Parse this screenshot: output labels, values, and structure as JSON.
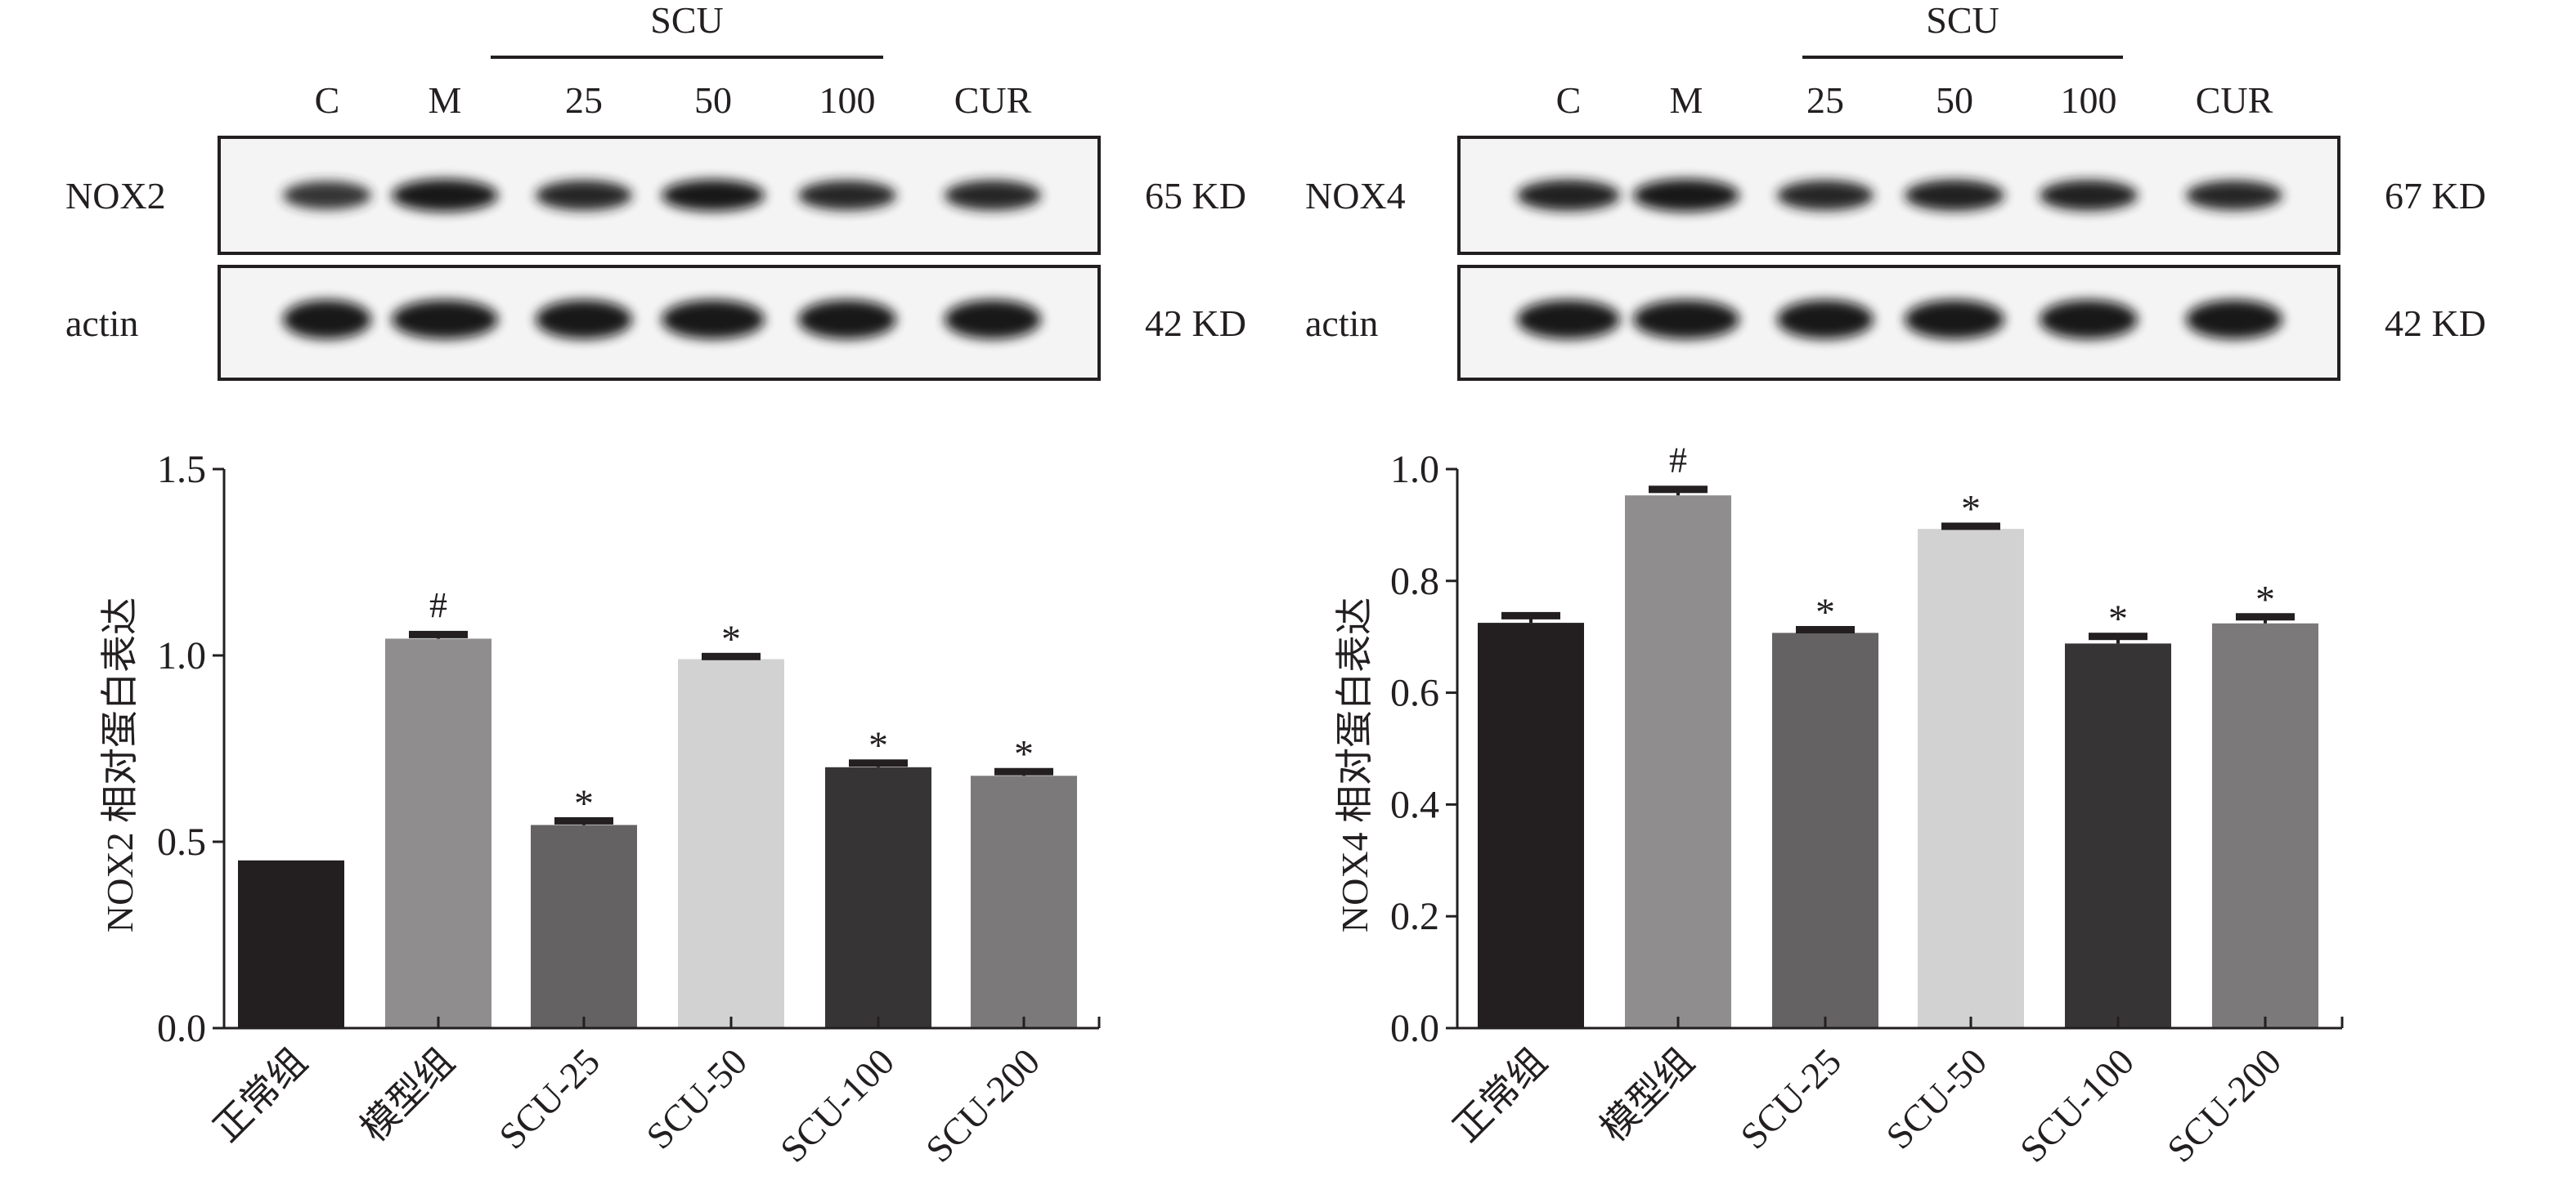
{
  "blots": [
    {
      "group_label": "SCU",
      "lanes": [
        "C",
        "M",
        "25",
        "50",
        "100",
        "CUR"
      ],
      "rows": [
        {
          "protein": "NOX2",
          "size": "65 KD"
        },
        {
          "protein": "actin",
          "size": "42 KD"
        }
      ]
    },
    {
      "group_label": "SCU",
      "lanes": [
        "C",
        "M",
        "25",
        "50",
        "100",
        "CUR"
      ],
      "rows": [
        {
          "protein": "NOX4",
          "size": "67 KD"
        },
        {
          "protein": "actin",
          "size": "42 KD"
        }
      ]
    }
  ],
  "chart_data": [
    {
      "type": "bar",
      "title": "",
      "xlabel": "",
      "ylabel": "NOX2 相对蛋白表达",
      "ylim": [
        0,
        1.5
      ],
      "yticks": [
        "0.0",
        "0.5",
        "1.0",
        "1.5"
      ],
      "categories": [
        "正常组",
        "模型组",
        "SCU-25",
        "SCU-50",
        "SCU-100",
        "SCU-200"
      ],
      "values": [
        0.45,
        1.045,
        0.545,
        0.99,
        0.7,
        0.677
      ],
      "errors": [
        0,
        0.01,
        0.01,
        0.006,
        0.01,
        0.01
      ],
      "annotations": [
        "",
        "#",
        "*",
        "*",
        "*",
        "*"
      ],
      "colors": [
        "#231f20",
        "#8f8d8e",
        "#646263",
        "#d2d2d2",
        "#373435",
        "#7b797a"
      ],
      "grid": false
    },
    {
      "type": "bar",
      "title": "",
      "xlabel": "",
      "ylabel": "NOX4 相对蛋白表达",
      "ylim": [
        0,
        1.0
      ],
      "yticks": [
        "0.0",
        "0.2",
        "0.4",
        "0.6",
        "0.8",
        "1.0"
      ],
      "categories": [
        "正常组",
        "模型组",
        "SCU-25",
        "SCU-50",
        "SCU-100",
        "SCU-200"
      ],
      "values": [
        0.725,
        0.953,
        0.707,
        0.893,
        0.688,
        0.724
      ],
      "errors": [
        0.012,
        0.01,
        0.005,
        0.004,
        0.012,
        0.011
      ],
      "annotations": [
        "",
        "#",
        "*",
        "*",
        "*",
        "*"
      ],
      "colors": [
        "#231f20",
        "#8f8d8e",
        "#646263",
        "#d2d2d2",
        "#373435",
        "#7b797a"
      ],
      "grid": false
    }
  ]
}
